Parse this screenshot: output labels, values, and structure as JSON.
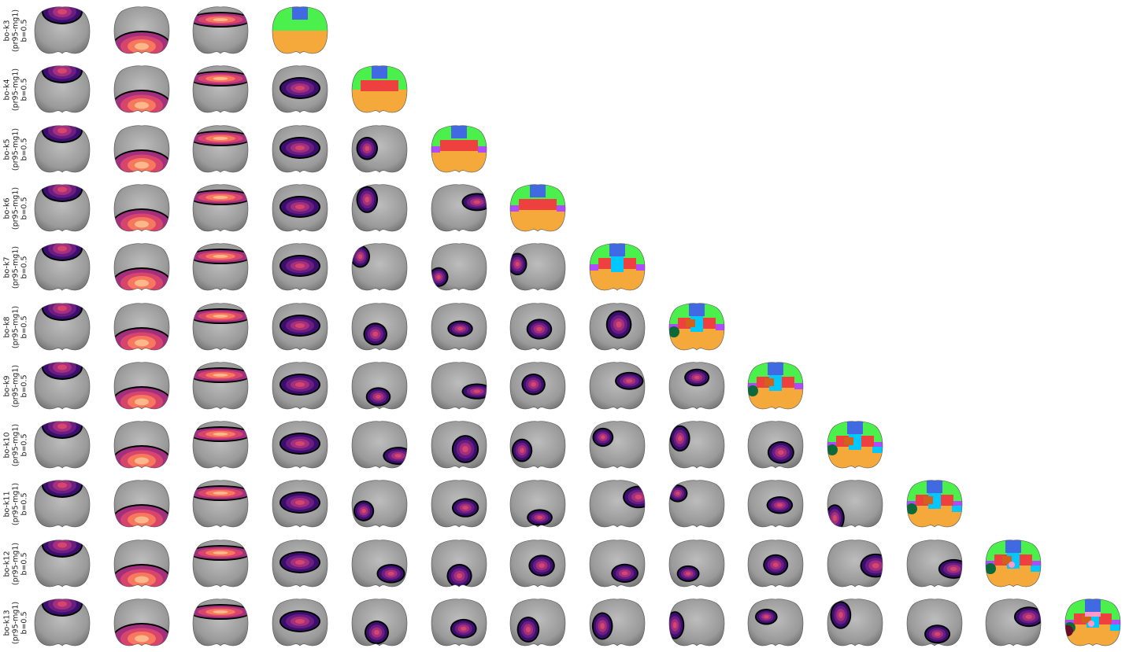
{
  "figure": {
    "rows": [
      {
        "name": "bo-k3",
        "sub": "(pr95-mg1)",
        "b": "b=0.5",
        "k": 3
      },
      {
        "name": "bo-k4",
        "sub": "(pr95-mg1)",
        "b": "b=0.5",
        "k": 4
      },
      {
        "name": "bo-k5",
        "sub": "(pr95-mg1)",
        "b": "b=0.5",
        "k": 5
      },
      {
        "name": "bo-k6",
        "sub": "(pr95-mg1)",
        "b": "b=0.5",
        "k": 6
      },
      {
        "name": "bo-k7",
        "sub": "(pr95-mg1)",
        "b": "b=0.5",
        "k": 7
      },
      {
        "name": "bo-k8",
        "sub": "(pr95-mg1)",
        "b": "b=0.5",
        "k": 8
      },
      {
        "name": "bo-k9",
        "sub": "(pr95-mg1)",
        "b": "b=0.5",
        "k": 9
      },
      {
        "name": "bo-k10",
        "sub": "(pr95-mg1)",
        "b": "b=0.5",
        "k": 10
      },
      {
        "name": "bo-k11",
        "sub": "(pr95-mg1)",
        "b": "b=0.5",
        "k": 11
      },
      {
        "name": "bo-k12",
        "sub": "(pr95-mg1)",
        "b": "b=0.5",
        "k": 12
      },
      {
        "name": "bo-k13",
        "sub": "(pr95-mg1)",
        "b": "b=0.5",
        "k": 13
      }
    ],
    "colors": {
      "brain_gray": "#9a9a9a",
      "border": "#000000",
      "magma": [
        "#1a0f2e",
        "#3b0f70",
        "#6b1e80",
        "#a3307e",
        "#d8456c",
        "#f7785e",
        "#fcb78a",
        "#fde2b3"
      ],
      "cluster_palette": [
        "#4169e1",
        "#4cf04c",
        "#f5a93a",
        "#ef4040",
        "#b04aff",
        "#00c8ff",
        "#d1621a",
        "#0b6a3a",
        "#ff99c8",
        "#6a0d2a",
        "#7b3fa0",
        "#f2e84b",
        "#2ad1c8"
      ]
    }
  }
}
